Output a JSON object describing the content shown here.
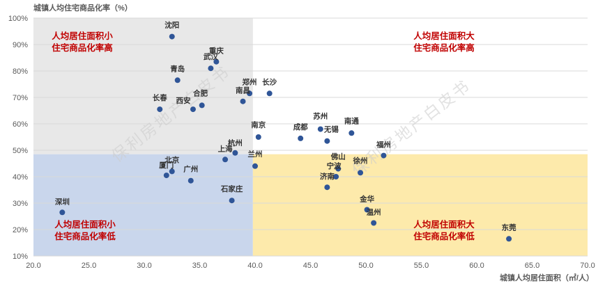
{
  "chart_data": {
    "type": "scatter",
    "title": "",
    "xlabel": "城镇人均居住面积（㎡/人）",
    "ylabel": "城镇人均住宅商品化率（%）",
    "xlim": [
      20,
      70
    ],
    "ylim": [
      10,
      100
    ],
    "x_ticks": [
      "20.0",
      "25.0",
      "30.0",
      "35.0",
      "40.0",
      "45.0",
      "50.0",
      "55.0",
      "60.0",
      "65.0",
      "70.0"
    ],
    "y_ticks": [
      "10%",
      "20%",
      "30%",
      "40%",
      "50%",
      "60%",
      "70%",
      "80%",
      "90%",
      "100%"
    ],
    "grid": "horizontal",
    "point_color": "#2f5597",
    "divider": {
      "x": 39.8,
      "y": 48.5
    },
    "quadrants": [
      {
        "id": "tl",
        "lines": [
          "人均居住面积小",
          "住宅商品化率高"
        ],
        "color": "#e8e8e8"
      },
      {
        "id": "tr",
        "lines": [
          "人均居住面积大",
          "住宅商品化率高"
        ],
        "color": "#ffffff"
      },
      {
        "id": "bl",
        "lines": [
          "人均居住面积小",
          "住宅商品化率低"
        ],
        "color": "#c9d6ec"
      },
      {
        "id": "br",
        "lines": [
          "人均居住面积大",
          "住宅商品化率低"
        ],
        "color": "#fdeaab"
      }
    ],
    "watermark": "保利房地产白皮书",
    "points": [
      {
        "name": "沈阳",
        "x": 32.5,
        "y": 93
      },
      {
        "name": "重庆",
        "x": 36.5,
        "y": 83.5
      },
      {
        "name": "武汉",
        "x": 36,
        "y": 81
      },
      {
        "name": "青岛",
        "x": 33,
        "y": 76.5
      },
      {
        "name": "郑州",
        "x": 39.5,
        "y": 71.5
      },
      {
        "name": "长沙",
        "x": 41.3,
        "y": 71.5
      },
      {
        "name": "南昌",
        "x": 38.9,
        "y": 68.5
      },
      {
        "name": "合肥",
        "x": 35.2,
        "y": 67
      },
      {
        "name": "西安",
        "x": 34.4,
        "y": 65.5
      },
      {
        "name": "长春",
        "x": 31.4,
        "y": 65.5
      },
      {
        "name": "南京",
        "x": 40.3,
        "y": 55
      },
      {
        "name": "成都",
        "x": 44.1,
        "y": 54.5
      },
      {
        "name": "苏州",
        "x": 45.9,
        "y": 58
      },
      {
        "name": "无锡",
        "x": 46.5,
        "y": 53.5
      },
      {
        "name": "南通",
        "x": 48.7,
        "y": 56.5
      },
      {
        "name": "福州",
        "x": 51.6,
        "y": 48
      },
      {
        "name": "杭州",
        "x": 38.2,
        "y": 49
      },
      {
        "name": "上海",
        "x": 37.3,
        "y": 46.5
      },
      {
        "name": "兰州",
        "x": 40,
        "y": 44
      },
      {
        "name": "北京",
        "x": 32.5,
        "y": 42
      },
      {
        "name": "厦门",
        "x": 32,
        "y": 40.5
      },
      {
        "name": "广州",
        "x": 34.2,
        "y": 38.5
      },
      {
        "name": "佛山",
        "x": 47.5,
        "y": 43
      },
      {
        "name": "宁波",
        "x": 47.3,
        "y": 40
      },
      {
        "name": "徐州",
        "x": 49.5,
        "y": 41.5
      },
      {
        "name": "济南",
        "x": 46.5,
        "y": 36
      },
      {
        "name": "石家庄",
        "x": 37.9,
        "y": 31
      },
      {
        "name": "金华",
        "x": 50.1,
        "y": 27.5
      },
      {
        "name": "温州",
        "x": 50.7,
        "y": 22.5
      },
      {
        "name": "深圳",
        "x": 22.6,
        "y": 26.5
      },
      {
        "name": "东莞",
        "x": 62.9,
        "y": 16.5
      }
    ]
  }
}
